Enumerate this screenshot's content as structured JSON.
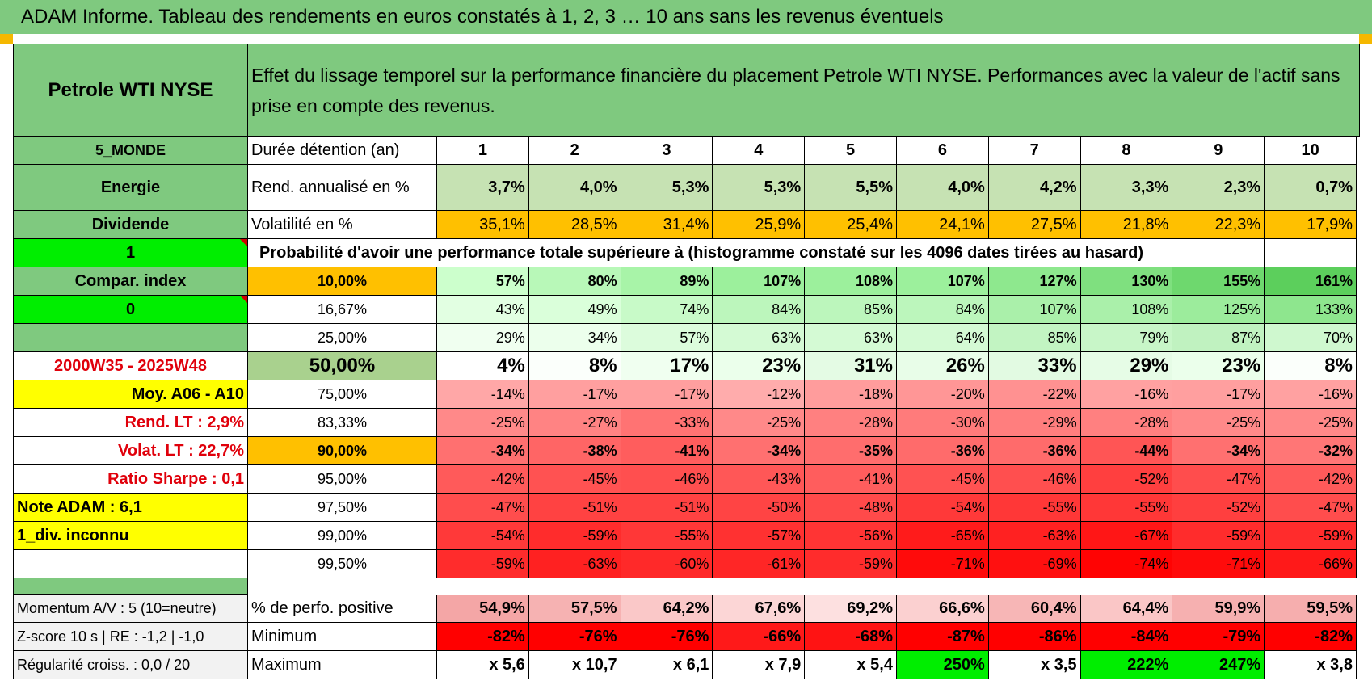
{
  "title": "ADAM Informe. Tableau des rendements en euros constatés à 1, 2, 3 … 10 ans sans les revenus éventuels",
  "header": {
    "asset_name": "Petrole WTI NYSE",
    "description": "Effet du lissage temporel sur la performance financière du placement Petrole WTI NYSE. Performances avec la valeur de l'actif sans prise en compte des revenus."
  },
  "left_panel": {
    "region": "5_MONDE",
    "sector": "Energie",
    "income_type": "Dividende",
    "flag_1": "1",
    "compar_label": "Compar. index",
    "flag_0": "0",
    "blank": "",
    "period": "2000W35 - 2025W48",
    "avg_label": "Moy. A06 - A10",
    "rend_lt": "Rend. LT :    2,9%",
    "volat_lt": "Volat. LT :    22,7%",
    "sharpe": "Ratio Sharpe :    0,1",
    "note": "Note ADAM : 6,1",
    "div": "1_div. inconnu"
  },
  "years_label": "Durée détention (an)",
  "years": [
    "1",
    "2",
    "3",
    "4",
    "5",
    "6",
    "7",
    "8",
    "9",
    "10"
  ],
  "rend_label": "Rend. annualisé en %",
  "rend_values": [
    "3,7%",
    "4,0%",
    "5,3%",
    "5,3%",
    "5,5%",
    "4,0%",
    "4,2%",
    "3,3%",
    "2,3%",
    "0,7%"
  ],
  "vol_label": "Volatilité en %",
  "vol_values": [
    "35,1%",
    "28,5%",
    "31,4%",
    "25,9%",
    "25,4%",
    "24,1%",
    "27,5%",
    "21,8%",
    "22,3%",
    "17,9%"
  ],
  "prob_title": "Probabilité d'avoir une performance totale supérieure à (histogramme constaté sur les 4096 dates tirées au hasard)",
  "prob_rows": [
    {
      "threshold": "10,00%",
      "values": [
        "57%",
        "80%",
        "89%",
        "107%",
        "108%",
        "107%",
        "127%",
        "130%",
        "155%",
        "161%"
      ]
    },
    {
      "threshold": "16,67%",
      "values": [
        "43%",
        "49%",
        "74%",
        "84%",
        "85%",
        "84%",
        "107%",
        "108%",
        "125%",
        "133%"
      ]
    },
    {
      "threshold": "25,00%",
      "values": [
        "29%",
        "34%",
        "57%",
        "63%",
        "63%",
        "64%",
        "85%",
        "79%",
        "87%",
        "70%"
      ]
    },
    {
      "threshold": "50,00%",
      "values": [
        "4%",
        "8%",
        "17%",
        "23%",
        "31%",
        "26%",
        "33%",
        "29%",
        "23%",
        "8%"
      ]
    },
    {
      "threshold": "75,00%",
      "values": [
        "-14%",
        "-17%",
        "-17%",
        "-12%",
        "-18%",
        "-20%",
        "-22%",
        "-16%",
        "-17%",
        "-16%"
      ]
    },
    {
      "threshold": "83,33%",
      "values": [
        "-25%",
        "-27%",
        "-33%",
        "-25%",
        "-28%",
        "-30%",
        "-29%",
        "-28%",
        "-25%",
        "-25%"
      ]
    },
    {
      "threshold": "90,00%",
      "values": [
        "-34%",
        "-38%",
        "-41%",
        "-34%",
        "-35%",
        "-36%",
        "-36%",
        "-44%",
        "-34%",
        "-32%"
      ]
    },
    {
      "threshold": "95,00%",
      "values": [
        "-42%",
        "-45%",
        "-46%",
        "-43%",
        "-41%",
        "-45%",
        "-46%",
        "-52%",
        "-47%",
        "-42%"
      ]
    },
    {
      "threshold": "97,50%",
      "values": [
        "-47%",
        "-51%",
        "-51%",
        "-50%",
        "-48%",
        "-54%",
        "-55%",
        "-55%",
        "-52%",
        "-47%"
      ]
    },
    {
      "threshold": "99,00%",
      "values": [
        "-54%",
        "-59%",
        "-55%",
        "-57%",
        "-56%",
        "-65%",
        "-63%",
        "-67%",
        "-59%",
        "-59%"
      ]
    },
    {
      "threshold": "99,50%",
      "values": [
        "-59%",
        "-63%",
        "-60%",
        "-61%",
        "-59%",
        "-71%",
        "-69%",
        "-74%",
        "-71%",
        "-66%"
      ]
    }
  ],
  "bottom": {
    "momentum": "Momentum A/V : 5 (10=neutre)",
    "zscore": "Z-score 10 s | RE : -1,2 | -1,0",
    "regularite": "Régularité croiss. : 0,0 / 20",
    "pos_label": "% de perfo. positive",
    "pos_values": [
      "54,9%",
      "57,5%",
      "64,2%",
      "67,6%",
      "69,2%",
      "66,6%",
      "60,4%",
      "64,4%",
      "59,9%",
      "59,5%"
    ],
    "min_label": "Minimum",
    "min_values": [
      "-82%",
      "-76%",
      "-76%",
      "-66%",
      "-68%",
      "-87%",
      "-86%",
      "-84%",
      "-79%",
      "-82%"
    ],
    "max_label": "Maximum",
    "max_values": [
      "x 5,6",
      "x 10,7",
      "x 6,1",
      "x 7,9",
      "x 5,4",
      "250%",
      "x 3,5",
      "222%",
      "247%",
      "x 3,8"
    ]
  },
  "colors": {
    "header_green": "#7fc97f",
    "bright_green": "#00ee00",
    "yellow": "#ffff00",
    "orange": "#ffc000",
    "red_text": "#e0000b"
  }
}
